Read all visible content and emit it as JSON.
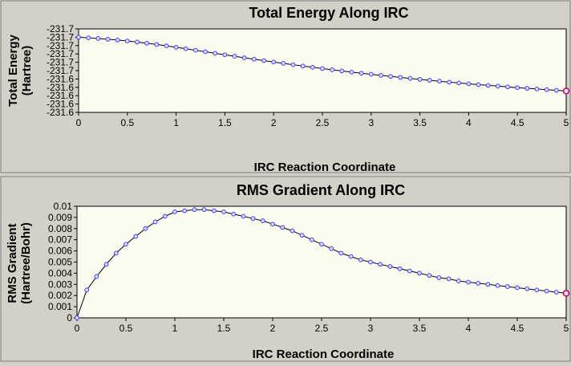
{
  "charts": {
    "colors": {
      "background": "#d4d0c8",
      "plot_background": "#fbfbf0",
      "line": "#000000",
      "point": "#4040ff",
      "point_fill": "#dcdcff",
      "last_point": "#c00060"
    }
  },
  "chart_data": [
    {
      "type": "line",
      "title": "Total Energy Along IRC",
      "xlabel": "IRC Reaction Coordinate",
      "ylabel_line1": "Total Energy",
      "ylabel_line2": "(Hartree)",
      "xlim": [
        0,
        5
      ],
      "ylim": [
        0,
        1
      ],
      "x_ticks": [
        "0",
        "0.5",
        "1",
        "1.5",
        "2",
        "2.5",
        "3",
        "3.5",
        "4",
        "4.5",
        "5"
      ],
      "y_ticks": [
        "-231.6",
        "-231.6",
        "-231.6",
        "-231.6",
        "-231.6",
        "-231.7",
        "-231.7",
        "-231.7",
        "-231.7",
        "-231.7",
        "-231.7"
      ],
      "y_values_note": "values shown as fraction of displayed axis range (axis labels are rounded in original)",
      "x": [
        0,
        0.1,
        0.2,
        0.3,
        0.4,
        0.5,
        0.6,
        0.7,
        0.8,
        0.9,
        1.0,
        1.1,
        1.2,
        1.3,
        1.4,
        1.5,
        1.6,
        1.7,
        1.8,
        1.9,
        2.0,
        2.1,
        2.2,
        2.3,
        2.4,
        2.5,
        2.6,
        2.7,
        2.8,
        2.9,
        3.0,
        3.1,
        3.2,
        3.3,
        3.4,
        3.5,
        3.6,
        3.7,
        3.8,
        3.9,
        4.0,
        4.1,
        4.2,
        4.3,
        4.4,
        4.5,
        4.6,
        4.7,
        4.8,
        4.9,
        5.0
      ],
      "y": [
        0.9,
        0.893,
        0.885,
        0.876,
        0.866,
        0.855,
        0.842,
        0.828,
        0.813,
        0.797,
        0.78,
        0.762,
        0.744,
        0.726,
        0.708,
        0.69,
        0.672,
        0.654,
        0.637,
        0.62,
        0.603,
        0.587,
        0.571,
        0.555,
        0.54,
        0.525,
        0.51,
        0.496,
        0.482,
        0.469,
        0.456,
        0.443,
        0.431,
        0.419,
        0.407,
        0.395,
        0.384,
        0.373,
        0.362,
        0.352,
        0.342,
        0.332,
        0.323,
        0.314,
        0.305,
        0.296,
        0.288,
        0.28,
        0.272,
        0.264,
        0.256
      ]
    },
    {
      "type": "line",
      "title": "RMS Gradient Along IRC",
      "xlabel": "IRC Reaction Coordinate",
      "ylabel_line1": "RMS Gradient",
      "ylabel_line2": "(Hartree/Bohr)",
      "xlim": [
        0,
        5
      ],
      "ylim": [
        0,
        0.01
      ],
      "x_ticks": [
        "0",
        "0.5",
        "1",
        "1.5",
        "2",
        "2.5",
        "3",
        "3.5",
        "4",
        "4.5",
        "5"
      ],
      "y_ticks": [
        "0",
        "0.001",
        "0.002",
        "0.003",
        "0.004",
        "0.005",
        "0.006",
        "0.007",
        "0.008",
        "0.009",
        "0.01"
      ],
      "x": [
        0,
        0.1,
        0.2,
        0.3,
        0.4,
        0.5,
        0.6,
        0.7,
        0.8,
        0.9,
        1.0,
        1.1,
        1.2,
        1.3,
        1.4,
        1.5,
        1.6,
        1.7,
        1.8,
        1.9,
        2.0,
        2.1,
        2.2,
        2.3,
        2.4,
        2.5,
        2.6,
        2.7,
        2.8,
        2.9,
        3.0,
        3.1,
        3.2,
        3.3,
        3.4,
        3.5,
        3.6,
        3.7,
        3.8,
        3.9,
        4.0,
        4.1,
        4.2,
        4.3,
        4.4,
        4.5,
        4.6,
        4.7,
        4.8,
        4.9,
        5.0
      ],
      "y": [
        0.0,
        0.0025,
        0.0037,
        0.0048,
        0.0058,
        0.0066,
        0.0073,
        0.008,
        0.0086,
        0.0091,
        0.0095,
        0.0096,
        0.0097,
        0.0097,
        0.0096,
        0.0095,
        0.0093,
        0.0091,
        0.0089,
        0.0087,
        0.0084,
        0.0081,
        0.0078,
        0.0074,
        0.007,
        0.0066,
        0.0062,
        0.0058,
        0.0055,
        0.0052,
        0.005,
        0.0048,
        0.0046,
        0.0044,
        0.0042,
        0.004,
        0.0038,
        0.0036,
        0.0035,
        0.0033,
        0.0032,
        0.0031,
        0.003,
        0.0029,
        0.0028,
        0.0027,
        0.0026,
        0.0025,
        0.0024,
        0.0023,
        0.0022
      ]
    }
  ]
}
